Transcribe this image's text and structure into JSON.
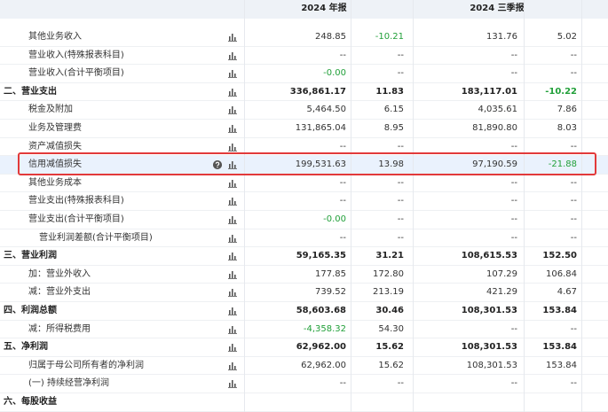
{
  "header": {
    "columns": [
      "2024 年报",
      "2024 三季报"
    ]
  },
  "table": {
    "rows": [
      {
        "label": "其他业务收入",
        "values": [
          "248.85",
          "-10.21",
          "131.76",
          "5.02"
        ]
      },
      {
        "label": "营业收入(特殊报表科目)",
        "values": [
          "--",
          "--",
          "--",
          "--"
        ]
      },
      {
        "label": "营业收入(合计平衡项目)",
        "values": [
          "-0.00",
          "--",
          "--",
          "--"
        ]
      },
      {
        "label": "二、营业支出",
        "values": [
          "336,861.17",
          "11.83",
          "183,117.01",
          "-10.22"
        ]
      },
      {
        "label": "税金及附加",
        "values": [
          "5,464.50",
          "6.15",
          "4,035.61",
          "7.86"
        ]
      },
      {
        "label": "业务及管理费",
        "values": [
          "131,865.04",
          "8.95",
          "81,890.80",
          "8.03"
        ]
      },
      {
        "label": "资产减值损失",
        "values": [
          "--",
          "--",
          "--",
          "--"
        ]
      },
      {
        "label": "信用减值损失",
        "values": [
          "199,531.63",
          "13.98",
          "97,190.59",
          "-21.88"
        ]
      },
      {
        "label": "其他业务成本",
        "values": [
          "--",
          "--",
          "--",
          "--"
        ]
      },
      {
        "label": "营业支出(特殊报表科目)",
        "values": [
          "--",
          "--",
          "--",
          "--"
        ]
      },
      {
        "label": "营业支出(合计平衡项目)",
        "values": [
          "-0.00",
          "--",
          "--",
          "--"
        ]
      },
      {
        "label": "营业利润差额(合计平衡项目)",
        "values": [
          "--",
          "--",
          "--",
          "--"
        ]
      },
      {
        "label": "三、营业利润",
        "values": [
          "59,165.35",
          "31.21",
          "108,615.53",
          "152.50"
        ]
      },
      {
        "label": "加：营业外收入",
        "values": [
          "177.85",
          "172.80",
          "107.29",
          "106.84"
        ]
      },
      {
        "label": "减：营业外支出",
        "values": [
          "739.52",
          "213.19",
          "421.29",
          "4.67"
        ]
      },
      {
        "label": "四、利润总额",
        "values": [
          "58,603.68",
          "30.46",
          "108,301.53",
          "153.84"
        ]
      },
      {
        "label": "减：所得税费用",
        "values": [
          "-4,358.32",
          "54.30",
          "--",
          "--"
        ]
      },
      {
        "label": "五、净利润",
        "values": [
          "62,962.00",
          "15.62",
          "108,301.53",
          "153.84"
        ]
      },
      {
        "label": "归属于母公司所有者的净利润",
        "values": [
          "62,962.00",
          "15.62",
          "108,301.53",
          "153.84"
        ]
      },
      {
        "label": "(一) 持续经营净利润",
        "values": [
          "--",
          "--",
          "--",
          "--"
        ]
      },
      {
        "label": "六、每股收益",
        "values": []
      }
    ]
  }
}
